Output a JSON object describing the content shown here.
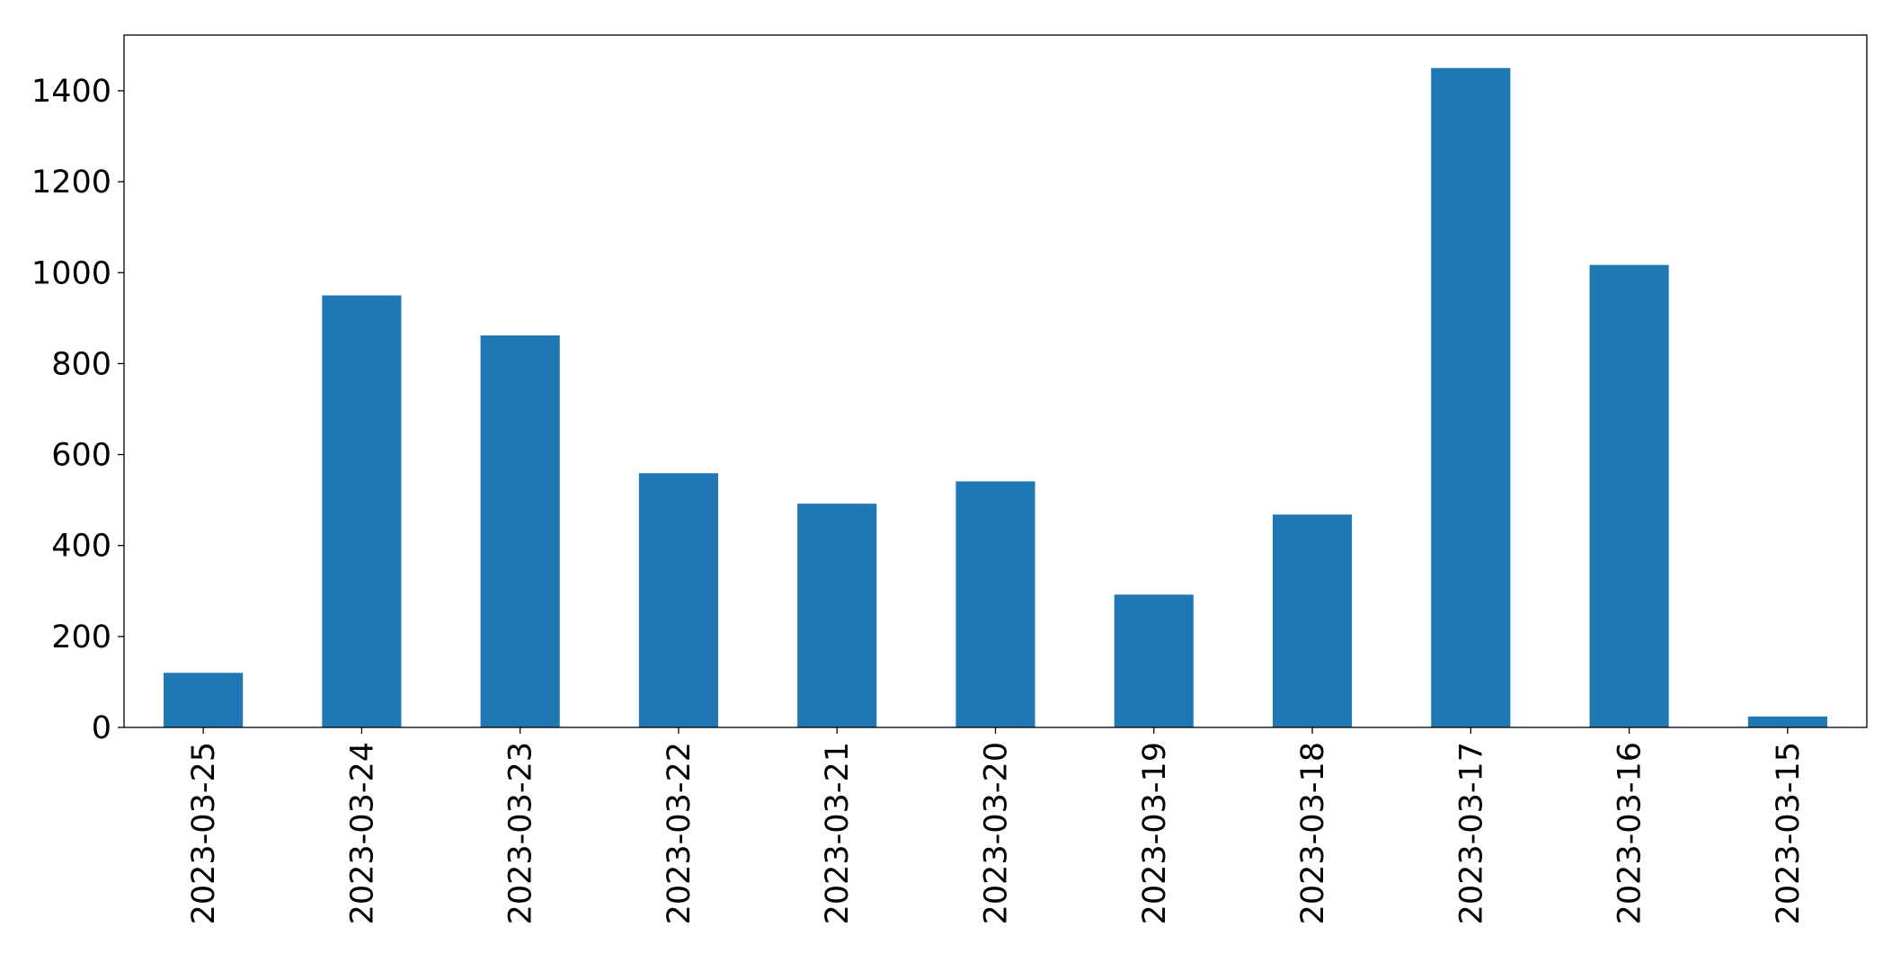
{
  "chart_data": {
    "type": "bar",
    "categories": [
      "2023-03-25",
      "2023-03-24",
      "2023-03-23",
      "2023-03-22",
      "2023-03-21",
      "2023-03-20",
      "2023-03-19",
      "2023-03-18",
      "2023-03-17",
      "2023-03-16",
      "2023-03-15"
    ],
    "values": [
      120,
      950,
      862,
      559,
      492,
      541,
      292,
      468,
      1450,
      1017,
      24
    ],
    "color": "#1f77b4",
    "ylim": [
      0,
      1522.5
    ],
    "yticks": [
      0,
      200,
      400,
      600,
      800,
      1000,
      1200,
      1400
    ],
    "grid": false
  }
}
